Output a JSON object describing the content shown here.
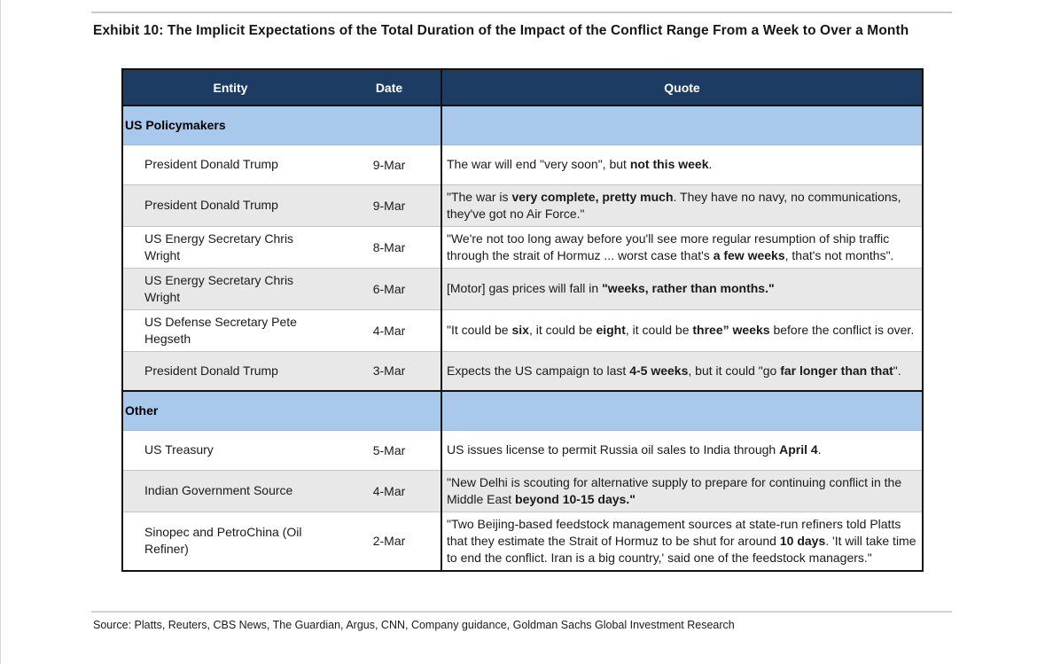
{
  "page": {
    "title": "Exhibit 10: The Implicit Expectations of the Total Duration of the Impact of the Conflict Range From a Week to Over a Month",
    "source": "Source: Platts, Reuters, CBS News, The Guardian, Argus, CNN, Company guidance, Goldman Sachs Global Investment Research"
  },
  "colors": {
    "header_bg": "#1c3c63",
    "header_text": "#ffffff",
    "section_bg": "#a8c8ec",
    "row_bg": "#ffffff",
    "row_alt_bg": "#e8e8e8",
    "table_border": "#111111",
    "rule": "#c9c9c9"
  },
  "table": {
    "headers": [
      "Entity",
      "Date",
      "Quote"
    ],
    "sections": [
      {
        "label": "US Policymakers",
        "rows": [
          {
            "entity": "President Donald Trump",
            "date": "9-Mar",
            "quote": [
              {
                "text": "The war will end \"very soon\", but ",
                "bold": false
              },
              {
                "text": "not this week",
                "bold": true
              },
              {
                "text": ".",
                "bold": false
              }
            ]
          },
          {
            "entity": "President Donald Trump",
            "date": "9-Mar",
            "quote": [
              {
                "text": "\"The war is ",
                "bold": false
              },
              {
                "text": "very complete, pretty much",
                "bold": true
              },
              {
                "text": ". They have no navy, no communications, they've got no Air Force.\"",
                "bold": false
              }
            ]
          },
          {
            "entity": "US Energy Secretary Chris Wright",
            "date": "8-Mar",
            "quote": [
              {
                "text": "\"We're not too long away before you'll see more regular resumption of ship traffic through the strait of Hormuz ... worst case that's ",
                "bold": false
              },
              {
                "text": "a few weeks",
                "bold": true
              },
              {
                "text": ", that's not months\".",
                "bold": false
              }
            ]
          },
          {
            "entity": "US Energy Secretary Chris Wright",
            "date": "6-Mar",
            "quote": [
              {
                "text": "[Motor] gas prices will fall in ",
                "bold": false
              },
              {
                "text": "\"weeks, rather than months.\"",
                "bold": true
              }
            ]
          },
          {
            "entity": "US Defense Secretary Pete Hegseth",
            "date": "4-Mar",
            "quote": [
              {
                "text": "\"It could be ",
                "bold": false
              },
              {
                "text": "six",
                "bold": true
              },
              {
                "text": ", it could be ",
                "bold": false
              },
              {
                "text": "eight",
                "bold": true
              },
              {
                "text": ", it could be ",
                "bold": false
              },
              {
                "text": "three” weeks",
                "bold": true
              },
              {
                "text": " before the conflict is over.",
                "bold": false
              }
            ]
          },
          {
            "entity": "President Donald Trump",
            "date": "3-Mar",
            "quote": [
              {
                "text": "Expects the US campaign to last ",
                "bold": false
              },
              {
                "text": "4-5 weeks",
                "bold": true
              },
              {
                "text": ", but it could \"go ",
                "bold": false
              },
              {
                "text": "far longer than that",
                "bold": true
              },
              {
                "text": "\".",
                "bold": false
              }
            ]
          }
        ]
      },
      {
        "label": "Other",
        "rows": [
          {
            "entity": "US Treasury",
            "date": "5-Mar",
            "quote": [
              {
                "text": "US issues license to permit Russia oil sales to India through ",
                "bold": false
              },
              {
                "text": "April 4",
                "bold": true
              },
              {
                "text": ".",
                "bold": false
              }
            ]
          },
          {
            "entity": "Indian Government Source",
            "date": "4-Mar",
            "quote": [
              {
                "text": "\"New Delhi is scouting for alternative supply to prepare for continuing conflict in the Middle East ",
                "bold": false
              },
              {
                "text": "beyond 10-15 days.\"",
                "bold": true
              }
            ]
          },
          {
            "entity": "Sinopec and PetroChina (Oil Refiner)",
            "date": "2-Mar",
            "quote": [
              {
                "text": "\"Two Beijing-based feedstock management sources at state-run refiners told Platts that they estimate the Strait of Hormuz to be shut for around ",
                "bold": false
              },
              {
                "text": "10 days",
                "bold": true
              },
              {
                "text": ". 'It will take time to end the conflict. Iran is a big country,' said one of the feedstock managers.\"",
                "bold": false
              }
            ]
          }
        ]
      }
    ]
  }
}
